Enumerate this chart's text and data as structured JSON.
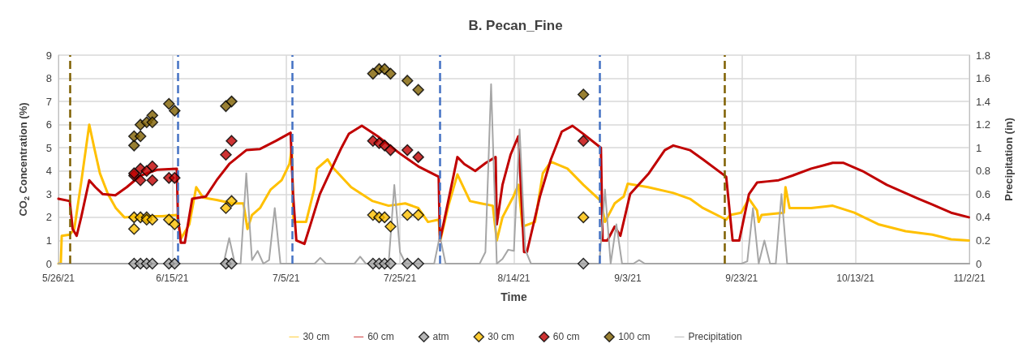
{
  "chart_data": {
    "type": "line",
    "title": "B. Pecan_Fine",
    "xlabel": "Time",
    "ylabel": "CO$_{2}$ Concentration (%)",
    "y2label": "Precipitation (in)",
    "xlim": [
      "2021-05-26",
      "2021-11-02"
    ],
    "xticks": [
      {
        "value": "2021-05-26",
        "label": "5/26/21"
      },
      {
        "value": "2021-06-15",
        "label": "6/15/21"
      },
      {
        "value": "2021-07-05",
        "label": "7/5/21"
      },
      {
        "value": "2021-07-25",
        "label": "7/25/21"
      },
      {
        "value": "2021-08-14",
        "label": "8/14/21"
      },
      {
        "value": "2021-09-03",
        "label": "9/3/21"
      },
      {
        "value": "2021-09-23",
        "label": "9/23/21"
      },
      {
        "value": "2021-10-13",
        "label": "10/13/21"
      },
      {
        "value": "2021-11-02",
        "label": "11/2/21"
      }
    ],
    "ylim": [
      0,
      9
    ],
    "yticks": [
      0,
      1,
      2,
      3,
      4,
      5,
      6,
      7,
      8,
      9
    ],
    "y2lim": [
      0,
      1.8
    ],
    "y2ticks": [
      0,
      0.2,
      0.4,
      0.6,
      0.8,
      1,
      1.2,
      1.4,
      1.6,
      1.8
    ],
    "grid": true,
    "legend": "bottom",
    "ref_lines": [
      {
        "axis": "x",
        "value": "2021-05-28",
        "color": "#7f6000",
        "line_style": "dashed"
      },
      {
        "axis": "x",
        "value": "2021-06-16",
        "color": "#4472c4",
        "line_style": "dashed"
      },
      {
        "axis": "x",
        "value": "2021-07-06",
        "color": "#4472c4",
        "line_style": "dashed"
      },
      {
        "axis": "x",
        "value": "2021-08-01",
        "color": "#4472c4",
        "line_style": "dashed"
      },
      {
        "axis": "x",
        "value": "2021-08-29",
        "color": "#4472c4",
        "line_style": "dashed"
      },
      {
        "axis": "x",
        "value": "2021-09-20",
        "color": "#7f6000",
        "line_style": "dashed"
      }
    ],
    "series": [
      {
        "name": "30 cm",
        "marker": "none",
        "color": "#ffc000",
        "x": [
          "2021-05-26",
          "2021-05-26T10:00",
          "2021-05-26T14:00",
          "2021-05-28",
          "2021-05-28T19:00",
          "2021-05-30",
          "2021-05-31T10:00",
          "2021-06-01T07:00",
          "2021-06-02T07:00",
          "2021-06-03T17:00",
          "2021-06-05T02:00",
          "2021-06-06T14:00",
          "2021-06-09T10:00",
          "2021-06-13T05:00",
          "2021-06-15T19:00",
          "2021-06-16T14:00",
          "2021-06-18",
          "2021-06-19T05:00",
          "2021-06-20T10:00",
          "2021-06-22T19:00",
          "2021-06-25T14:00",
          "2021-06-27T12:00",
          "2021-06-28T05:00",
          "2021-06-29",
          "2021-06-30T10:00",
          "2021-07-02T07:00",
          "2021-07-04T05:00",
          "2021-07-05T14:00",
          "2021-07-06",
          "2021-07-06T07:00",
          "2021-07-08T12:00",
          "2021-07-09T22:00",
          "2021-07-10T10:00",
          "2021-07-12T07:00",
          "2021-07-13",
          "2021-07-16T10:00",
          "2021-07-20T05:00",
          "2021-07-23",
          "2021-07-25T22:00",
          "2021-07-28T05:00",
          "2021-07-29T22:00",
          "2021-07-31T19:00",
          "2021-08-01T02:00",
          "2021-08-02T12:00",
          "2021-08-04T02:00",
          "2021-08-06T07:00",
          "2021-08-08T05:00",
          "2021-08-10T07:00",
          "2021-08-11",
          "2021-08-12",
          "2021-08-13T22:00",
          "2021-08-14T19:00",
          "2021-08-15T12:00",
          "2021-08-17T17:00",
          "2021-08-19T02:00",
          "2021-08-20T12:00",
          "2021-08-23T10:00",
          "2021-08-26T05:00",
          "2021-08-29T07:00",
          "2021-08-30",
          "2021-08-31T17:00",
          "2021-09-02T07:00",
          "2021-09-03",
          "2021-09-06T14:00",
          "2021-09-11",
          "2021-09-13T22:00",
          "2021-09-16T05:00",
          "2021-09-20T07:00",
          "2021-09-21",
          "2021-09-22T22:00",
          "2021-09-24T07:00",
          "2021-09-25T17:00",
          "2021-09-26",
          "2021-09-26T12:00",
          "2021-09-30T10:00",
          "2021-09-30T17:00",
          "2021-10-01T10:00",
          "2021-10-05T05:00",
          "2021-10-09",
          "2021-10-12T19:00",
          "2021-10-17",
          "2021-10-21T19:00",
          "2021-10-26T12:00",
          "2021-10-29T19:00",
          "2021-11-01T22:00"
        ],
        "values": [
          0,
          0,
          1.2,
          1.25,
          1.5,
          3.5,
          6.0,
          5.0,
          3.9,
          3.0,
          2.4,
          2.0,
          2.05,
          2.05,
          2.1,
          1.1,
          1.7,
          3.3,
          2.85,
          2.75,
          2.6,
          2.6,
          1.5,
          2.1,
          2.4,
          3.2,
          3.6,
          4.3,
          5.0,
          1.8,
          1.8,
          3.2,
          4.1,
          4.5,
          4.2,
          3.3,
          2.7,
          2.5,
          2.6,
          2.4,
          1.8,
          1.9,
          1.0,
          2.5,
          3.85,
          2.7,
          2.6,
          2.5,
          1.0,
          2.0,
          2.9,
          3.4,
          1.6,
          1.8,
          3.9,
          4.4,
          4.1,
          3.4,
          2.7,
          1.8,
          2.6,
          2.9,
          3.45,
          3.3,
          3.05,
          2.8,
          2.4,
          1.9,
          2.1,
          2.2,
          2.8,
          2.3,
          1.8,
          2.1,
          2.2,
          3.3,
          2.4,
          2.4,
          2.5,
          2.2,
          1.7,
          1.4,
          1.25,
          1.05,
          1.0
        ]
      },
      {
        "name": "60 cm",
        "marker": "none",
        "color": "#c00000",
        "x": [
          "2021-05-26",
          "2021-05-28",
          "2021-05-28T12:00",
          "2021-05-29T05:00",
          "2021-05-30",
          "2021-05-31T10:00",
          "2021-06-01T12:00",
          "2021-06-02T19:00",
          "2021-06-05",
          "2021-06-07",
          "2021-06-09T10:00",
          "2021-06-12T07:00",
          "2021-06-15T19:00",
          "2021-06-16",
          "2021-06-16T12:00",
          "2021-06-17T05:00",
          "2021-06-18T12:00",
          "2021-06-20T22:00",
          "2021-06-22T19:00",
          "2021-06-25",
          "2021-06-28",
          "2021-06-30T10:00",
          "2021-07-03T05:00",
          "2021-07-05T19:00",
          "2021-07-06T05:00",
          "2021-07-06T19:00",
          "2021-07-08T05:00",
          "2021-07-09T10:00",
          "2021-07-10T22:00",
          "2021-07-12T19:00",
          "2021-07-14T17:00",
          "2021-07-16",
          "2021-07-18T07:00",
          "2021-07-21T02:00",
          "2021-07-25",
          "2021-07-28T05:00",
          "2021-07-31T19:00",
          "2021-08-01",
          "2021-08-01T17:00",
          "2021-08-04T02:00",
          "2021-08-05T07:00",
          "2021-08-07T05:00",
          "2021-08-09T02:00",
          "2021-08-10T19:00",
          "2021-08-11",
          "2021-08-12",
          "2021-08-13T10:00",
          "2021-08-14T19:00",
          "2021-08-15T19:00",
          "2021-08-16T07:00",
          "2021-08-18T14:00",
          "2021-08-20T12:00",
          "2021-08-22T10:00",
          "2021-08-24T07:00",
          "2021-08-26T05:00",
          "2021-08-29T07:00",
          "2021-08-29T14:00",
          "2021-08-30T10:00",
          "2021-08-31T17:00",
          "2021-09-01T17:00",
          "2021-09-03T10:00",
          "2021-09-06T17:00",
          "2021-09-09T12:00",
          "2021-09-11",
          "2021-09-13T22:00",
          "2021-09-16T05:00",
          "2021-09-20T07:00",
          "2021-09-21T10:00",
          "2021-09-22T14:00",
          "2021-09-24T07:00",
          "2021-09-25T17:00",
          "2021-09-27T14:00",
          "2021-09-29T12:00",
          "2021-09-30T17:00",
          "2021-10-01T22:00",
          "2021-10-05T05:00",
          "2021-10-09",
          "2021-10-10T22:00",
          "2021-10-14T05:00",
          "2021-10-18T12:00",
          "2021-10-24T02:00",
          "2021-10-26T12:00",
          "2021-10-29T19:00",
          "2021-11-01T22:00"
        ],
        "values": [
          2.8,
          2.7,
          1.5,
          1.2,
          2.0,
          3.6,
          3.3,
          3.0,
          2.95,
          3.3,
          3.8,
          4.05,
          4.1,
          2.0,
          0.9,
          0.9,
          2.8,
          2.9,
          3.6,
          4.3,
          4.9,
          4.95,
          5.3,
          5.65,
          3.0,
          1.0,
          0.85,
          1.8,
          3.0,
          4.0,
          5.0,
          5.6,
          5.95,
          5.5,
          4.75,
          4.2,
          3.75,
          1.0,
          1.8,
          4.6,
          4.3,
          4.0,
          4.35,
          4.6,
          1.7,
          3.4,
          4.7,
          5.5,
          0.5,
          0.5,
          2.9,
          4.5,
          5.7,
          5.95,
          5.6,
          5.0,
          1.0,
          1.0,
          1.6,
          1.2,
          3.0,
          3.9,
          4.9,
          5.1,
          4.9,
          4.5,
          3.75,
          1.0,
          1.0,
          3.0,
          3.5,
          3.55,
          3.6,
          3.7,
          3.8,
          4.1,
          4.35,
          4.35,
          4.0,
          3.4,
          2.8,
          2.55,
          2.2,
          2.0
        ]
      },
      {
        "name": "atm",
        "type": "scatter",
        "marker": "diamond",
        "color": "#a5a5a5",
        "x": [
          "2021-06-08T07:00",
          "2021-06-09T10:00",
          "2021-06-10T12:00",
          "2021-06-11T12:00",
          "2021-06-14T10:00",
          "2021-06-15T10:00",
          "2021-06-24T10:00",
          "2021-06-25T10:00",
          "2021-07-20T06:00",
          "2021-07-21T08:00",
          "2021-07-22T07:00",
          "2021-07-23T08:00",
          "2021-07-26T07:00",
          "2021-07-28T05:00",
          "2021-08-26T05:00"
        ],
        "values": [
          0,
          0,
          0,
          0,
          0,
          0,
          0,
          0,
          0,
          0,
          0,
          0,
          0,
          0,
          0
        ]
      },
      {
        "name": "30 cm",
        "type": "scatter",
        "marker": "diamond",
        "color": "#ffc000",
        "x": [
          "2021-06-08T07:00",
          "2021-06-08T07:00",
          "2021-06-09T10:00",
          "2021-06-10T12:00",
          "2021-06-10T12:00",
          "2021-06-11T12:00",
          "2021-06-14T10:00",
          "2021-06-15T10:00",
          "2021-06-24T10:00",
          "2021-06-25T10:00",
          "2021-07-20T06:00",
          "2021-07-21T08:00",
          "2021-07-22T07:00",
          "2021-07-23T08:00",
          "2021-07-26T07:00",
          "2021-07-28T05:00",
          "2021-08-26T05:00"
        ],
        "values": [
          2.0,
          1.5,
          2.0,
          2.0,
          1.9,
          1.9,
          1.9,
          1.7,
          2.4,
          2.7,
          2.1,
          2.0,
          2.0,
          1.6,
          2.1,
          2.1,
          2.0
        ]
      },
      {
        "name": "60 cm",
        "type": "scatter",
        "marker": "diamond",
        "color": "#c00000",
        "x": [
          "2021-06-08T07:00",
          "2021-06-08T07:00",
          "2021-06-09T10:00",
          "2021-06-09T10:00",
          "2021-06-10T12:00",
          "2021-06-11T12:00",
          "2021-06-11T12:00",
          "2021-06-14T10:00",
          "2021-06-15T10:00",
          "2021-06-24T10:00",
          "2021-06-25T10:00",
          "2021-07-20T06:00",
          "2021-07-21T08:00",
          "2021-07-22T07:00",
          "2021-07-23T08:00",
          "2021-07-26T07:00",
          "2021-07-28T05:00",
          "2021-08-26T05:00"
        ],
        "values": [
          3.8,
          3.9,
          4.1,
          3.6,
          4.0,
          4.2,
          3.6,
          3.7,
          3.7,
          4.7,
          5.3,
          5.3,
          5.2,
          5.1,
          4.9,
          4.9,
          4.6,
          5.3
        ]
      },
      {
        "name": "100 cm",
        "type": "scatter",
        "marker": "diamond",
        "color": "#7f6000",
        "x": [
          "2021-06-08T07:00",
          "2021-06-08T07:00",
          "2021-06-09T10:00",
          "2021-06-09T10:00",
          "2021-06-10T12:00",
          "2021-06-11T12:00",
          "2021-06-11T12:00",
          "2021-06-14T10:00",
          "2021-06-15T10:00",
          "2021-06-24T10:00",
          "2021-06-25T10:00",
          "2021-07-20T06:00",
          "2021-07-21T08:00",
          "2021-07-22T07:00",
          "2021-07-23T08:00",
          "2021-07-26T07:00",
          "2021-07-28T05:00",
          "2021-08-26T05:00"
        ],
        "values": [
          5.1,
          5.5,
          6.0,
          5.5,
          6.1,
          6.4,
          6.1,
          6.9,
          6.6,
          6.8,
          7.0,
          8.2,
          8.4,
          8.4,
          8.2,
          7.9,
          7.5,
          7.3
        ]
      },
      {
        "name": "Precipitation",
        "marker": "none",
        "axis": "y2",
        "color": "#a6a6a6",
        "x": [
          "2021-05-26",
          "2021-06-24",
          "2021-06-25",
          "2021-06-26",
          "2021-06-27",
          "2021-06-28",
          "2021-06-29",
          "2021-06-30",
          "2021-07-01",
          "2021-07-02",
          "2021-07-03",
          "2021-07-04",
          "2021-07-10",
          "2021-07-11",
          "2021-07-12",
          "2021-07-17",
          "2021-07-18",
          "2021-07-19",
          "2021-07-23",
          "2021-07-24",
          "2021-07-25",
          "2021-07-26",
          "2021-07-31",
          "2021-08-01",
          "2021-08-02",
          "2021-08-08",
          "2021-08-09",
          "2021-08-10",
          "2021-08-11",
          "2021-08-12",
          "2021-08-13",
          "2021-08-14",
          "2021-08-15",
          "2021-08-16",
          "2021-08-17",
          "2021-08-29",
          "2021-08-30",
          "2021-08-31",
          "2021-09-01",
          "2021-09-02",
          "2021-09-04",
          "2021-09-05",
          "2021-09-06",
          "2021-09-23",
          "2021-09-24",
          "2021-09-25",
          "2021-09-26",
          "2021-09-27",
          "2021-09-28",
          "2021-09-29",
          "2021-09-30",
          "2021-10-01",
          "2021-11-02"
        ],
        "values": [
          0,
          0,
          0.22,
          0,
          0,
          0.78,
          0.03,
          0.11,
          0,
          0.03,
          0.48,
          0,
          0,
          0.05,
          0,
          0,
          0.06,
          0,
          0,
          0.68,
          0.1,
          0,
          0,
          0.24,
          0,
          0,
          0.1,
          1.55,
          0,
          0.04,
          0.12,
          0.11,
          1.16,
          0.12,
          0,
          0,
          0.64,
          0,
          0.34,
          0,
          0,
          0.03,
          0,
          0,
          0.02,
          0.48,
          0,
          0.2,
          0,
          0,
          0.6,
          0,
          0
        ]
      }
    ]
  }
}
